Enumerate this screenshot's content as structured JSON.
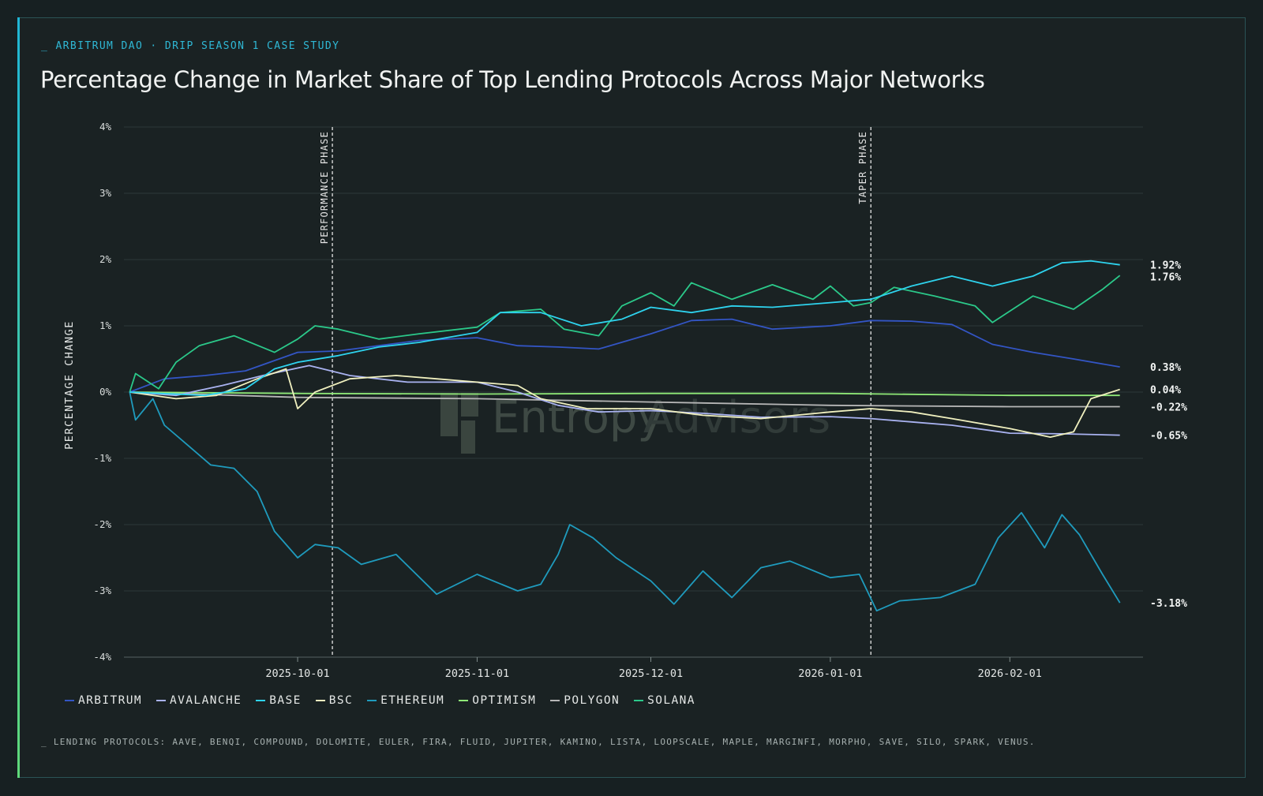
{
  "header": {
    "eyebrow": "_ ARBITRUM DAO · DRIP SEASON 1 CASE STUDY",
    "title": "Percentage Change in Market Share of Top Lending Protocols Across Major Networks"
  },
  "footer": {
    "note": "_ LENDING PROTOCOLS: AAVE, BENQI, COMPOUND, DOLOMITE, EULER, FIRA, FLUID, JUPITER, KAMINO, LISTA, LOOPSCALE, MAPLE, MARGINFI, MORPHO, SAVE, SILO, SPARK, VENUS."
  },
  "watermark": {
    "text1": "Entropy",
    "text2": "Advisors"
  },
  "chart_data": {
    "type": "line",
    "ylabel": "PERCENTAGE CHANGE",
    "ylim": [
      -4,
      4
    ],
    "y_ticks": [
      "4%",
      "3%",
      "2%",
      "1%",
      "0%",
      "-1%",
      "-2%",
      "-3%",
      "-4%"
    ],
    "xlim": [
      "2025-09-01",
      "2026-02-24"
    ],
    "x_ticks": [
      "2025-10-01",
      "2025-11-01",
      "2025-12-01",
      "2026-01-01",
      "2026-02-01"
    ],
    "grid": true,
    "legend_position": "bottom",
    "annotations": [
      {
        "label": "PERFORMANCE PHASE",
        "x": "2025-10-07"
      },
      {
        "label": "TAPER PHASE",
        "x": "2026-01-08"
      }
    ],
    "series": [
      {
        "name": "ARBITRUM",
        "color": "#3355c4",
        "end_label": "0.38%",
        "points": [
          [
            "2025-09-02",
            0
          ],
          [
            "2025-09-08",
            0.2
          ],
          [
            "2025-09-15",
            0.25
          ],
          [
            "2025-09-22",
            0.32
          ],
          [
            "2025-10-01",
            0.6
          ],
          [
            "2025-10-08",
            0.62
          ],
          [
            "2025-10-15",
            0.7
          ],
          [
            "2025-10-22",
            0.78
          ],
          [
            "2025-11-01",
            0.82
          ],
          [
            "2025-11-08",
            0.7
          ],
          [
            "2025-11-15",
            0.68
          ],
          [
            "2025-11-22",
            0.65
          ],
          [
            "2025-12-01",
            0.88
          ],
          [
            "2025-12-08",
            1.08
          ],
          [
            "2025-12-15",
            1.1
          ],
          [
            "2025-12-22",
            0.95
          ],
          [
            "2026-01-01",
            1.0
          ],
          [
            "2026-01-08",
            1.08
          ],
          [
            "2026-01-15",
            1.07
          ],
          [
            "2026-01-22",
            1.02
          ],
          [
            "2026-01-29",
            0.72
          ],
          [
            "2026-02-05",
            0.6
          ],
          [
            "2026-02-12",
            0.5
          ],
          [
            "2026-02-20",
            0.38
          ]
        ]
      },
      {
        "name": "AVALANCHE",
        "color": "#a9b2f0",
        "end_label": "-0.65%",
        "points": [
          [
            "2025-09-02",
            0
          ],
          [
            "2025-09-10",
            -0.05
          ],
          [
            "2025-09-18",
            0.1
          ],
          [
            "2025-09-25",
            0.25
          ],
          [
            "2025-10-03",
            0.4
          ],
          [
            "2025-10-10",
            0.25
          ],
          [
            "2025-10-20",
            0.15
          ],
          [
            "2025-11-01",
            0.15
          ],
          [
            "2025-11-08",
            0.0
          ],
          [
            "2025-11-15",
            -0.2
          ],
          [
            "2025-11-22",
            -0.3
          ],
          [
            "2025-12-01",
            -0.28
          ],
          [
            "2025-12-10",
            -0.32
          ],
          [
            "2025-12-20",
            -0.38
          ],
          [
            "2026-01-01",
            -0.37
          ],
          [
            "2026-01-08",
            -0.4
          ],
          [
            "2026-01-15",
            -0.45
          ],
          [
            "2026-01-22",
            -0.5
          ],
          [
            "2026-02-01",
            -0.62
          ],
          [
            "2026-02-10",
            -0.63
          ],
          [
            "2026-02-20",
            -0.65
          ]
        ]
      },
      {
        "name": "BASE",
        "color": "#2ed3ee",
        "end_label": "1.92%",
        "points": [
          [
            "2025-09-02",
            0
          ],
          [
            "2025-09-15",
            -0.05
          ],
          [
            "2025-09-22",
            0.05
          ],
          [
            "2025-09-27",
            0.35
          ],
          [
            "2025-10-01",
            0.45
          ],
          [
            "2025-10-08",
            0.55
          ],
          [
            "2025-10-15",
            0.68
          ],
          [
            "2025-10-22",
            0.75
          ],
          [
            "2025-11-01",
            0.9
          ],
          [
            "2025-11-05",
            1.2
          ],
          [
            "2025-11-12",
            1.2
          ],
          [
            "2025-11-19",
            1.0
          ],
          [
            "2025-11-26",
            1.1
          ],
          [
            "2025-12-01",
            1.28
          ],
          [
            "2025-12-08",
            1.2
          ],
          [
            "2025-12-15",
            1.3
          ],
          [
            "2025-12-22",
            1.28
          ],
          [
            "2026-01-01",
            1.35
          ],
          [
            "2026-01-08",
            1.4
          ],
          [
            "2026-01-15",
            1.6
          ],
          [
            "2026-01-22",
            1.75
          ],
          [
            "2026-01-29",
            1.6
          ],
          [
            "2026-02-05",
            1.75
          ],
          [
            "2026-02-10",
            1.95
          ],
          [
            "2026-02-15",
            1.98
          ],
          [
            "2026-02-20",
            1.92
          ]
        ]
      },
      {
        "name": "BSC",
        "color": "#f0f0bf",
        "end_label": "0.04%",
        "points": [
          [
            "2025-09-02",
            0
          ],
          [
            "2025-09-10",
            -0.1
          ],
          [
            "2025-09-17",
            -0.05
          ],
          [
            "2025-09-24",
            0.2
          ],
          [
            "2025-09-29",
            0.35
          ],
          [
            "2025-10-01",
            -0.25
          ],
          [
            "2025-10-04",
            0.0
          ],
          [
            "2025-10-10",
            0.2
          ],
          [
            "2025-10-18",
            0.25
          ],
          [
            "2025-10-25",
            0.2
          ],
          [
            "2025-11-01",
            0.15
          ],
          [
            "2025-11-08",
            0.1
          ],
          [
            "2025-11-12",
            -0.1
          ],
          [
            "2025-11-20",
            -0.25
          ],
          [
            "2025-12-01",
            -0.25
          ],
          [
            "2025-12-10",
            -0.35
          ],
          [
            "2025-12-20",
            -0.4
          ],
          [
            "2026-01-01",
            -0.3
          ],
          [
            "2026-01-08",
            -0.25
          ],
          [
            "2026-01-15",
            -0.3
          ],
          [
            "2026-01-22",
            -0.4
          ],
          [
            "2026-02-01",
            -0.55
          ],
          [
            "2026-02-08",
            -0.68
          ],
          [
            "2026-02-12",
            -0.6
          ],
          [
            "2026-02-15",
            -0.1
          ],
          [
            "2026-02-20",
            0.04
          ]
        ]
      },
      {
        "name": "ETHEREUM",
        "color": "#1f9bbd",
        "end_label": "-3.18%",
        "points": [
          [
            "2025-09-02",
            0
          ],
          [
            "2025-09-03",
            -0.42
          ],
          [
            "2025-09-06",
            -0.1
          ],
          [
            "2025-09-08",
            -0.5
          ],
          [
            "2025-09-12",
            -0.8
          ],
          [
            "2025-09-16",
            -1.1
          ],
          [
            "2025-09-20",
            -1.15
          ],
          [
            "2025-09-24",
            -1.5
          ],
          [
            "2025-09-27",
            -2.1
          ],
          [
            "2025-10-01",
            -2.5
          ],
          [
            "2025-10-04",
            -2.3
          ],
          [
            "2025-10-08",
            -2.35
          ],
          [
            "2025-10-12",
            -2.6
          ],
          [
            "2025-10-18",
            -2.45
          ],
          [
            "2025-10-25",
            -3.05
          ],
          [
            "2025-11-01",
            -2.75
          ],
          [
            "2025-11-08",
            -3.0
          ],
          [
            "2025-11-12",
            -2.9
          ],
          [
            "2025-11-15",
            -2.45
          ],
          [
            "2025-11-17",
            -2.0
          ],
          [
            "2025-11-21",
            -2.2
          ],
          [
            "2025-11-25",
            -2.5
          ],
          [
            "2025-12-01",
            -2.85
          ],
          [
            "2025-12-05",
            -3.2
          ],
          [
            "2025-12-10",
            -2.7
          ],
          [
            "2025-12-15",
            -3.1
          ],
          [
            "2025-12-20",
            -2.65
          ],
          [
            "2025-12-25",
            -2.55
          ],
          [
            "2026-01-01",
            -2.8
          ],
          [
            "2026-01-06",
            -2.75
          ],
          [
            "2026-01-09",
            -3.3
          ],
          [
            "2026-01-13",
            -3.15
          ],
          [
            "2026-01-20",
            -3.1
          ],
          [
            "2026-01-26",
            -2.9
          ],
          [
            "2026-01-30",
            -2.2
          ],
          [
            "2026-02-03",
            -1.82
          ],
          [
            "2026-02-07",
            -2.35
          ],
          [
            "2026-02-10",
            -1.85
          ],
          [
            "2026-02-13",
            -2.15
          ],
          [
            "2026-02-17",
            -2.75
          ],
          [
            "2026-02-20",
            -3.18
          ]
        ]
      },
      {
        "name": "OPTIMISM",
        "color": "#8fe877",
        "end_label": "",
        "points": [
          [
            "2025-09-02",
            0
          ],
          [
            "2025-10-01",
            -0.02
          ],
          [
            "2025-11-01",
            -0.03
          ],
          [
            "2025-12-01",
            -0.02
          ],
          [
            "2026-01-01",
            -0.02
          ],
          [
            "2026-02-01",
            -0.05
          ],
          [
            "2026-02-20",
            -0.05
          ]
        ]
      },
      {
        "name": "POLYGON",
        "color": "#b7b7b7",
        "end_label": "-0.22%",
        "points": [
          [
            "2025-09-02",
            0
          ],
          [
            "2025-10-01",
            -0.08
          ],
          [
            "2025-11-01",
            -0.1
          ],
          [
            "2025-12-01",
            -0.15
          ],
          [
            "2026-01-01",
            -0.2
          ],
          [
            "2026-02-01",
            -0.22
          ],
          [
            "2026-02-20",
            -0.22
          ]
        ]
      },
      {
        "name": "SOLANA",
        "color": "#2bc98a",
        "end_label": "1.76%",
        "points": [
          [
            "2025-09-02",
            0
          ],
          [
            "2025-09-03",
            0.28
          ],
          [
            "2025-09-07",
            0.05
          ],
          [
            "2025-09-10",
            0.45
          ],
          [
            "2025-09-14",
            0.7
          ],
          [
            "2025-09-20",
            0.85
          ],
          [
            "2025-09-27",
            0.6
          ],
          [
            "2025-10-01",
            0.8
          ],
          [
            "2025-10-04",
            1.0
          ],
          [
            "2025-10-08",
            0.95
          ],
          [
            "2025-10-15",
            0.8
          ],
          [
            "2025-10-22",
            0.88
          ],
          [
            "2025-11-01",
            0.98
          ],
          [
            "2025-11-05",
            1.2
          ],
          [
            "2025-11-12",
            1.25
          ],
          [
            "2025-11-16",
            0.95
          ],
          [
            "2025-11-22",
            0.85
          ],
          [
            "2025-11-26",
            1.3
          ],
          [
            "2025-12-01",
            1.5
          ],
          [
            "2025-12-05",
            1.3
          ],
          [
            "2025-12-08",
            1.65
          ],
          [
            "2025-12-15",
            1.4
          ],
          [
            "2025-12-22",
            1.62
          ],
          [
            "2025-12-29",
            1.4
          ],
          [
            "2026-01-01",
            1.6
          ],
          [
            "2026-01-05",
            1.3
          ],
          [
            "2026-01-08",
            1.35
          ],
          [
            "2026-01-12",
            1.58
          ],
          [
            "2026-01-19",
            1.45
          ],
          [
            "2026-01-26",
            1.3
          ],
          [
            "2026-01-29",
            1.05
          ],
          [
            "2026-02-05",
            1.45
          ],
          [
            "2026-02-12",
            1.25
          ],
          [
            "2026-02-17",
            1.55
          ],
          [
            "2026-02-20",
            1.76
          ]
        ]
      }
    ]
  }
}
